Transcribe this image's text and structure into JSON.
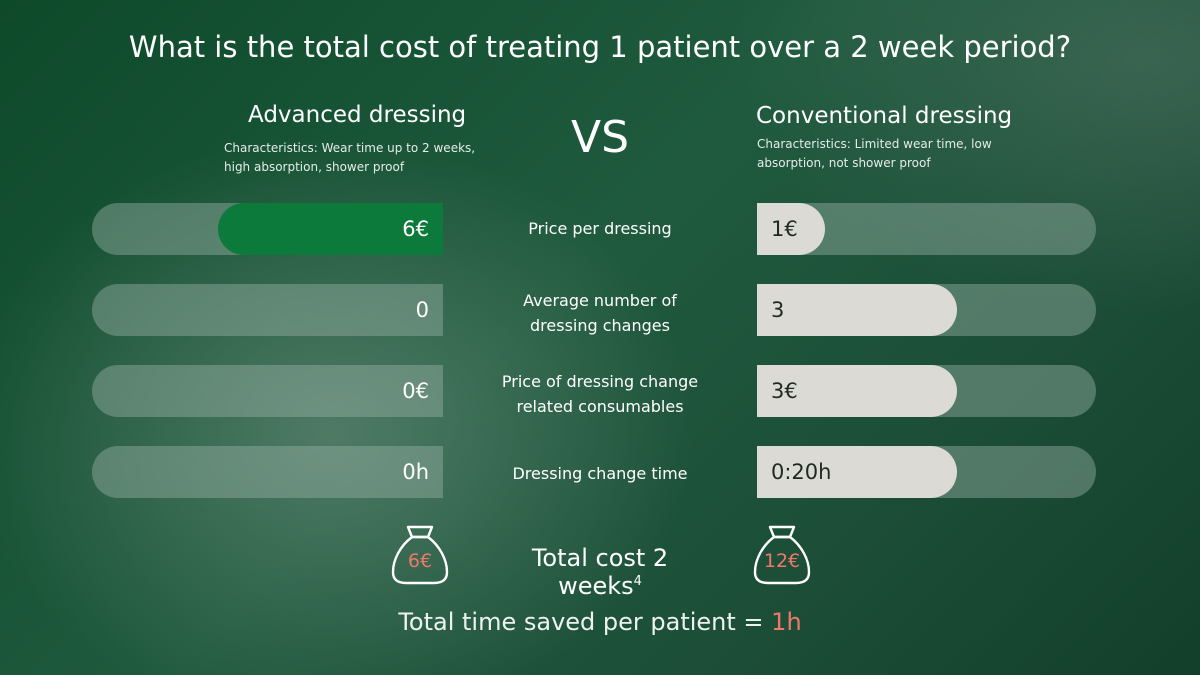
{
  "title": "What is the total cost of treating 1 patient over a 2 week period?",
  "advanced": {
    "heading": "Advanced dressing",
    "characteristics_line1": "Characteristics: Wear time up to 2 weeks,",
    "characteristics_line2": "high absorption, shower proof",
    "total_cost": "6€"
  },
  "vs": "VS",
  "conventional": {
    "heading": "Conventional dressing",
    "characteristics_line1": "Characteristics: Limited wear time, low",
    "characteristics_line2": "absorption, not shower proof",
    "total_cost": "12€"
  },
  "rows": [
    {
      "label_line1": "Price per dressing",
      "label_line2": "",
      "advanced": "6€",
      "conventional": "1€",
      "advanced_fill": 0.64,
      "conventional_fill": 0.2
    },
    {
      "label_line1": "Average number of",
      "label_line2": "dressing changes",
      "advanced": "0",
      "conventional": "3",
      "advanced_fill": 0,
      "conventional_fill": 0.59
    },
    {
      "label_line1": "Price of dressing change",
      "label_line2": "related consumables",
      "advanced": "0€",
      "conventional": "3€",
      "advanced_fill": 0,
      "conventional_fill": 0.59
    },
    {
      "label_line1": "Dressing change time",
      "label_line2": "",
      "advanced": "0h",
      "conventional": "0:20h",
      "advanced_fill": 0,
      "conventional_fill": 0.59
    }
  ],
  "total": {
    "label": "Total cost 2 weeks",
    "footnote": "4"
  },
  "saved": {
    "prefix": "Total time saved per patient = ",
    "value": "1h"
  },
  "colors": {
    "advanced_fill": "#0b7a3b",
    "conventional_fill": "#dcdad5",
    "accent": "#f0786a"
  },
  "icons": {
    "bag": "money-bag-icon"
  }
}
